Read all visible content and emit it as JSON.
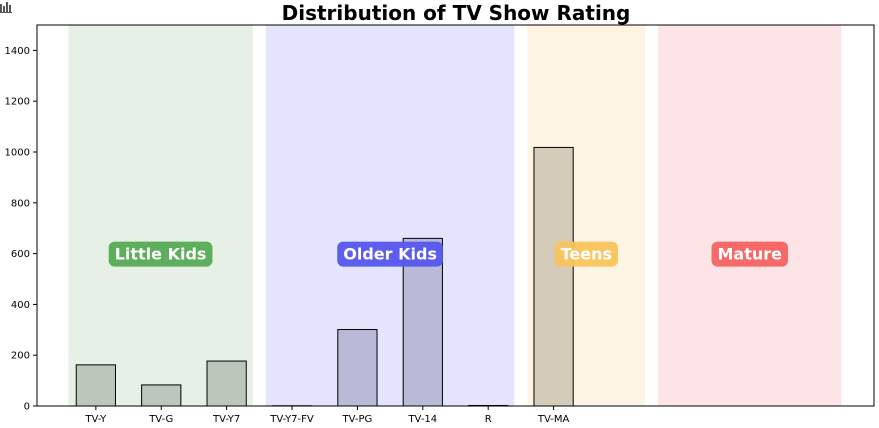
{
  "toolbar": {
    "icon": "bar-chart-icon"
  },
  "chart_data": {
    "type": "bar",
    "title": "Distribution of TV Show Rating",
    "xlabel": "",
    "ylabel": "",
    "categories": [
      "TV-Y",
      "TV-G",
      "TV-Y7",
      "TV-Y7-FV",
      "TV-PG",
      "TV-14",
      "R",
      "TV-MA"
    ],
    "values": [
      162,
      83,
      177,
      1,
      301,
      660,
      2,
      1018
    ],
    "bar_colors": [
      "#bcc6ba",
      "#bcc6ba",
      "#bcc6ba",
      "#b9b9d8",
      "#b9b9d8",
      "#b9b9d8",
      "#b9b9d8",
      "#d5cbb9"
    ],
    "ylim": [
      0,
      1500
    ],
    "yticks": [
      0,
      200,
      400,
      600,
      800,
      1000,
      1200,
      1400
    ],
    "grid": false,
    "legend": "none",
    "bands": [
      {
        "label": "Little Kids",
        "x_start": -0.42,
        "x_end": 2.4,
        "fill": "#e6f0e6",
        "box": "#55aa55",
        "label_y": 600
      },
      {
        "label": "Older Kids",
        "x_start": 2.6,
        "x_end": 6.4,
        "fill": "#e4e4fd",
        "box": "#5555ee",
        "label_y": 600
      },
      {
        "label": "Teens",
        "x_start": 6.6,
        "x_end": 8.4,
        "fill": "#fdf4e4",
        "box": "#f8c35c",
        "label_y": 600
      },
      {
        "label": "Mature",
        "x_start": 8.6,
        "x_end": 11.4,
        "fill": "#fde4e7",
        "box": "#f56262",
        "label_y": 600
      }
    ],
    "xlim": [
      -0.9,
      11.9
    ]
  }
}
